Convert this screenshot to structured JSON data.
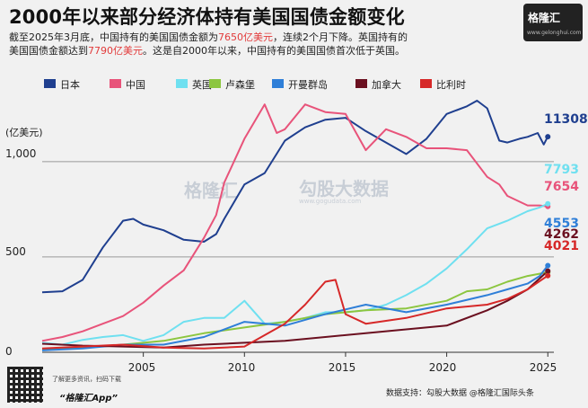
{
  "title": "2000年以来部分经济体持有美国国债金额变化",
  "subtitle": {
    "line1_a": "截至2025年3月底，中国持有的美国国债金额为",
    "line1_hl": "7650亿美元",
    "line1_b": "，连续2个月下降。英国持有的",
    "line2_a": "美国国债金额达到",
    "line2_hl": "7790亿美元",
    "line2_b": "。这是自2000年以来，中国持有的美国国债首次低于英国。"
  },
  "logo": {
    "text": "格隆汇",
    "url": "www.gelonghui.com"
  },
  "watermark": {
    "brand": "格隆汇",
    "data_brand": "勾股大数据",
    "data_url": "www.gogudata.com"
  },
  "footer": {
    "qr_note": "了解更多资讯，扫码下载",
    "app": "“格隆汇App”",
    "source": "数据支持：勾股大数据 @格隆汇国际头条"
  },
  "colors": {
    "japan": "#1f3f8f",
    "china": "#e8537a",
    "uk": "#6fe0f0",
    "luxembourg": "#8cc63f",
    "cayman": "#2f7fd8",
    "canada": "#6b1020",
    "belgium": "#d62828",
    "ref_line": "#999999"
  },
  "chart_data": {
    "type": "line",
    "title": "2000年以来部分经济体持有美国国债金额变化",
    "ylabel": "(亿美元)",
    "ylim": [
      0,
      1400
    ],
    "xlim": [
      2000,
      2025.3
    ],
    "yticks": [
      0,
      500,
      1000
    ],
    "ytick_labels": [
      "0",
      "500",
      "1,000"
    ],
    "xticks": [
      2005,
      2010,
      2015,
      2020,
      2025
    ],
    "reference_lines": [
      500,
      1000
    ],
    "legend": "top",
    "series": [
      {
        "name": "日本",
        "key": "japan",
        "end_label": "11308",
        "points": [
          [
            2000,
            315
          ],
          [
            2001,
            320
          ],
          [
            2002,
            380
          ],
          [
            2003,
            550
          ],
          [
            2004,
            690
          ],
          [
            2004.5,
            700
          ],
          [
            2005,
            670
          ],
          [
            2006,
            640
          ],
          [
            2007,
            590
          ],
          [
            2008,
            580
          ],
          [
            2008.6,
            620
          ],
          [
            2009,
            700
          ],
          [
            2010,
            880
          ],
          [
            2011,
            940
          ],
          [
            2012,
            1110
          ],
          [
            2013,
            1180
          ],
          [
            2014,
            1220
          ],
          [
            2015,
            1230
          ],
          [
            2016,
            1160
          ],
          [
            2017,
            1100
          ],
          [
            2018,
            1040
          ],
          [
            2019,
            1120
          ],
          [
            2020,
            1250
          ],
          [
            2021,
            1290
          ],
          [
            2021.5,
            1320
          ],
          [
            2022,
            1280
          ],
          [
            2022.6,
            1110
          ],
          [
            2023,
            1100
          ],
          [
            2023.6,
            1120
          ],
          [
            2024,
            1130
          ],
          [
            2024.5,
            1150
          ],
          [
            2024.8,
            1090
          ],
          [
            2025,
            1131
          ]
        ]
      },
      {
        "name": "中国",
        "key": "china",
        "end_label": "7654",
        "points": [
          [
            2000,
            60
          ],
          [
            2001,
            80
          ],
          [
            2002,
            110
          ],
          [
            2003,
            150
          ],
          [
            2004,
            190
          ],
          [
            2005,
            260
          ],
          [
            2006,
            350
          ],
          [
            2007,
            430
          ],
          [
            2008,
            600
          ],
          [
            2008.6,
            720
          ],
          [
            2009,
            890
          ],
          [
            2010,
            1120
          ],
          [
            2011,
            1300
          ],
          [
            2011.6,
            1150
          ],
          [
            2012,
            1170
          ],
          [
            2013,
            1300
          ],
          [
            2014,
            1260
          ],
          [
            2015,
            1250
          ],
          [
            2016,
            1060
          ],
          [
            2017,
            1170
          ],
          [
            2018,
            1130
          ],
          [
            2019,
            1070
          ],
          [
            2020,
            1070
          ],
          [
            2021,
            1060
          ],
          [
            2022,
            920
          ],
          [
            2022.6,
            880
          ],
          [
            2023,
            820
          ],
          [
            2024,
            770
          ],
          [
            2024.6,
            770
          ],
          [
            2025,
            765
          ]
        ]
      },
      {
        "name": "英国",
        "key": "uk",
        "end_label": "7793",
        "points": [
          [
            2000,
            50
          ],
          [
            2001,
            40
          ],
          [
            2002,
            65
          ],
          [
            2003,
            80
          ],
          [
            2004,
            90
          ],
          [
            2005,
            60
          ],
          [
            2006,
            90
          ],
          [
            2007,
            160
          ],
          [
            2008,
            180
          ],
          [
            2009,
            180
          ],
          [
            2010,
            270
          ],
          [
            2011,
            150
          ],
          [
            2012,
            160
          ],
          [
            2013,
            180
          ],
          [
            2014,
            210
          ],
          [
            2015,
            210
          ],
          [
            2016,
            220
          ],
          [
            2017,
            250
          ],
          [
            2018,
            300
          ],
          [
            2019,
            360
          ],
          [
            2020,
            440
          ],
          [
            2021,
            540
          ],
          [
            2022,
            650
          ],
          [
            2023,
            690
          ],
          [
            2024,
            740
          ],
          [
            2024.6,
            760
          ],
          [
            2025,
            779
          ]
        ]
      },
      {
        "name": "卢森堡",
        "key": "luxembourg",
        "end_label": "",
        "points": [
          [
            2000,
            15
          ],
          [
            2002,
            25
          ],
          [
            2004,
            40
          ],
          [
            2006,
            60
          ],
          [
            2008,
            100
          ],
          [
            2010,
            130
          ],
          [
            2012,
            160
          ],
          [
            2014,
            200
          ],
          [
            2016,
            220
          ],
          [
            2018,
            230
          ],
          [
            2020,
            270
          ],
          [
            2021,
            320
          ],
          [
            2022,
            330
          ],
          [
            2023,
            370
          ],
          [
            2024,
            400
          ],
          [
            2025,
            420
          ]
        ]
      },
      {
        "name": "开曼群岛",
        "key": "cayman",
        "end_label": "4553",
        "points": [
          [
            2000,
            10
          ],
          [
            2002,
            20
          ],
          [
            2004,
            40
          ],
          [
            2006,
            40
          ],
          [
            2008,
            80
          ],
          [
            2010,
            160
          ],
          [
            2012,
            140
          ],
          [
            2014,
            200
          ],
          [
            2016,
            250
          ],
          [
            2018,
            210
          ],
          [
            2020,
            250
          ],
          [
            2022,
            300
          ],
          [
            2023,
            330
          ],
          [
            2024,
            360
          ],
          [
            2024.6,
            400
          ],
          [
            2025,
            455
          ]
        ]
      },
      {
        "name": "加拿大",
        "key": "canada",
        "end_label": "4262",
        "points": [
          [
            2000,
            45
          ],
          [
            2002,
            35
          ],
          [
            2004,
            30
          ],
          [
            2006,
            25
          ],
          [
            2008,
            40
          ],
          [
            2010,
            50
          ],
          [
            2012,
            60
          ],
          [
            2014,
            80
          ],
          [
            2016,
            100
          ],
          [
            2018,
            120
          ],
          [
            2020,
            140
          ],
          [
            2022,
            220
          ],
          [
            2023,
            270
          ],
          [
            2024,
            330
          ],
          [
            2025,
            426
          ]
        ]
      },
      {
        "name": "比利时",
        "key": "belgium",
        "end_label": "4021",
        "points": [
          [
            2000,
            20
          ],
          [
            2002,
            30
          ],
          [
            2004,
            40
          ],
          [
            2006,
            25
          ],
          [
            2008,
            20
          ],
          [
            2010,
            30
          ],
          [
            2012,
            150
          ],
          [
            2013,
            250
          ],
          [
            2014,
            370
          ],
          [
            2014.5,
            380
          ],
          [
            2015,
            200
          ],
          [
            2016,
            150
          ],
          [
            2018,
            180
          ],
          [
            2020,
            230
          ],
          [
            2022,
            250
          ],
          [
            2023,
            280
          ],
          [
            2024,
            330
          ],
          [
            2025,
            402
          ]
        ]
      }
    ]
  }
}
